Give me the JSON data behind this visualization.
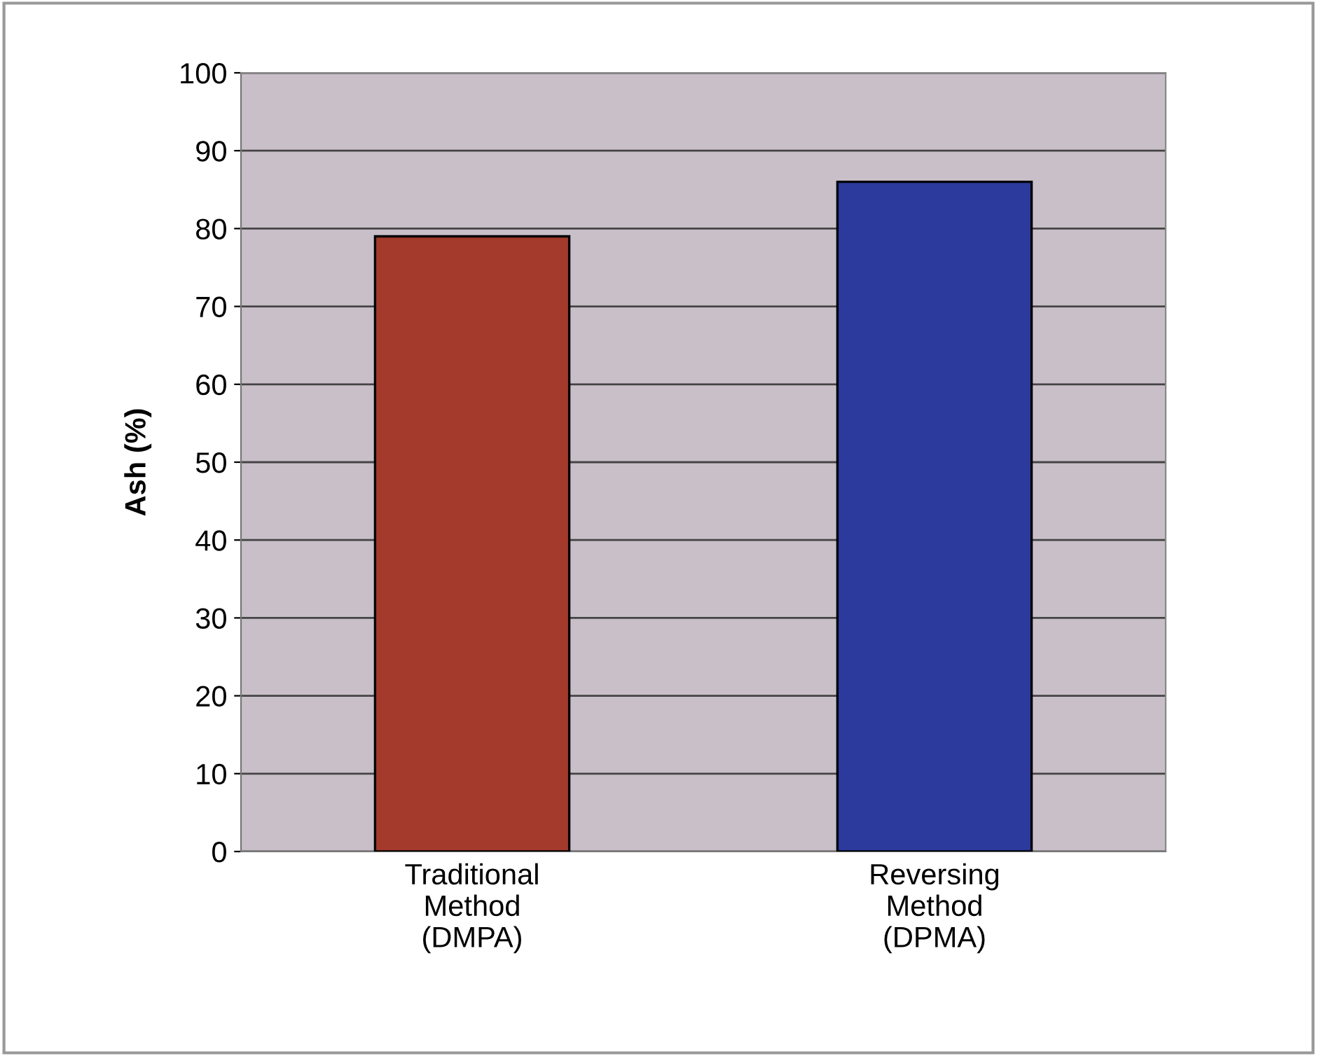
{
  "chart_data": {
    "type": "bar",
    "ylabel": "Ash (%)",
    "categories": [
      "Traditional\nMethod\n(DMPA)",
      "Reversing\nMethod\n(DPMA)"
    ],
    "values": [
      79,
      86
    ],
    "colors": [
      "#a33a2c",
      "#2b3a9c"
    ],
    "ylim": [
      0,
      100
    ],
    "yticks": [
      0,
      10,
      20,
      30,
      40,
      50,
      60,
      70,
      80,
      90,
      100
    ],
    "grid": "y",
    "legend": false
  }
}
